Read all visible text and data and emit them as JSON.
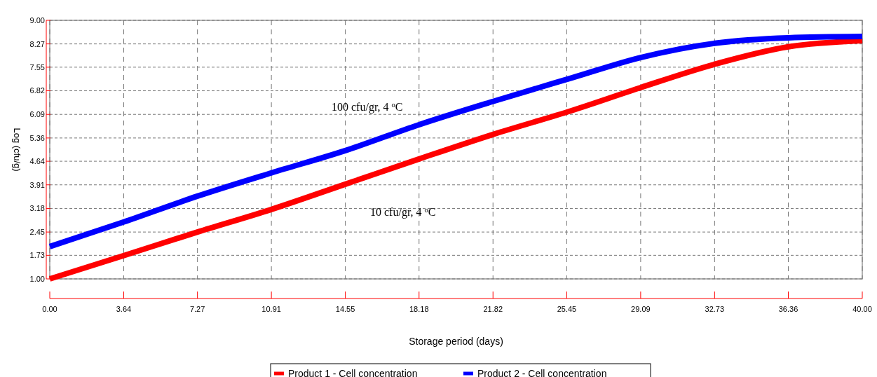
{
  "chart_data": {
    "type": "line",
    "xlabel": "Storage period (days)",
    "ylabel": "Log (cfu/g)",
    "xlim": [
      0,
      40
    ],
    "xticks": [
      {
        "value": 0,
        "label": "0.00"
      },
      {
        "value": 3.64,
        "label": "3.64"
      },
      7.27,
      10.91,
      14.55,
      18.18,
      21.82,
      25.45,
      29.09,
      32.73,
      36.36,
      {
        "value": 40,
        "label": "40.00"
      }
    ],
    "ylim": [
      1,
      9
    ],
    "yticks": [
      {
        "value": 1,
        "label": "1.00"
      },
      1.73,
      2.45,
      3.18,
      3.91,
      4.64,
      5.36,
      6.09,
      6.82,
      7.55,
      8.27,
      {
        "value": 9,
        "label": "9.00"
      }
    ],
    "x": [
      0,
      3.64,
      7.27,
      10.91,
      14.55,
      18.18,
      21.82,
      25.7,
      29.09,
      32.73,
      36.36,
      40
    ],
    "series": [
      {
        "name": "Product 1 - Cell concentration",
        "color": "#ff0000",
        "values": [
          1.0,
          1.72,
          2.45,
          3.15,
          3.93,
          4.71,
          5.47,
          6.21,
          6.92,
          7.64,
          8.18,
          8.37
        ]
      },
      {
        "name": "Product 2 - Cell concentration",
        "color": "#0000ff",
        "values": [
          2.0,
          2.76,
          3.56,
          4.28,
          4.97,
          5.77,
          6.49,
          7.22,
          7.85,
          8.29,
          8.46,
          8.5
        ]
      }
    ],
    "annotations": [
      "100 cfu/gr, 4 $^{o}$C",
      "10 cfu/gr, 4 $^{o}$C"
    ],
    "grid": true,
    "legend": "bottom",
    "line_style": "solid"
  }
}
